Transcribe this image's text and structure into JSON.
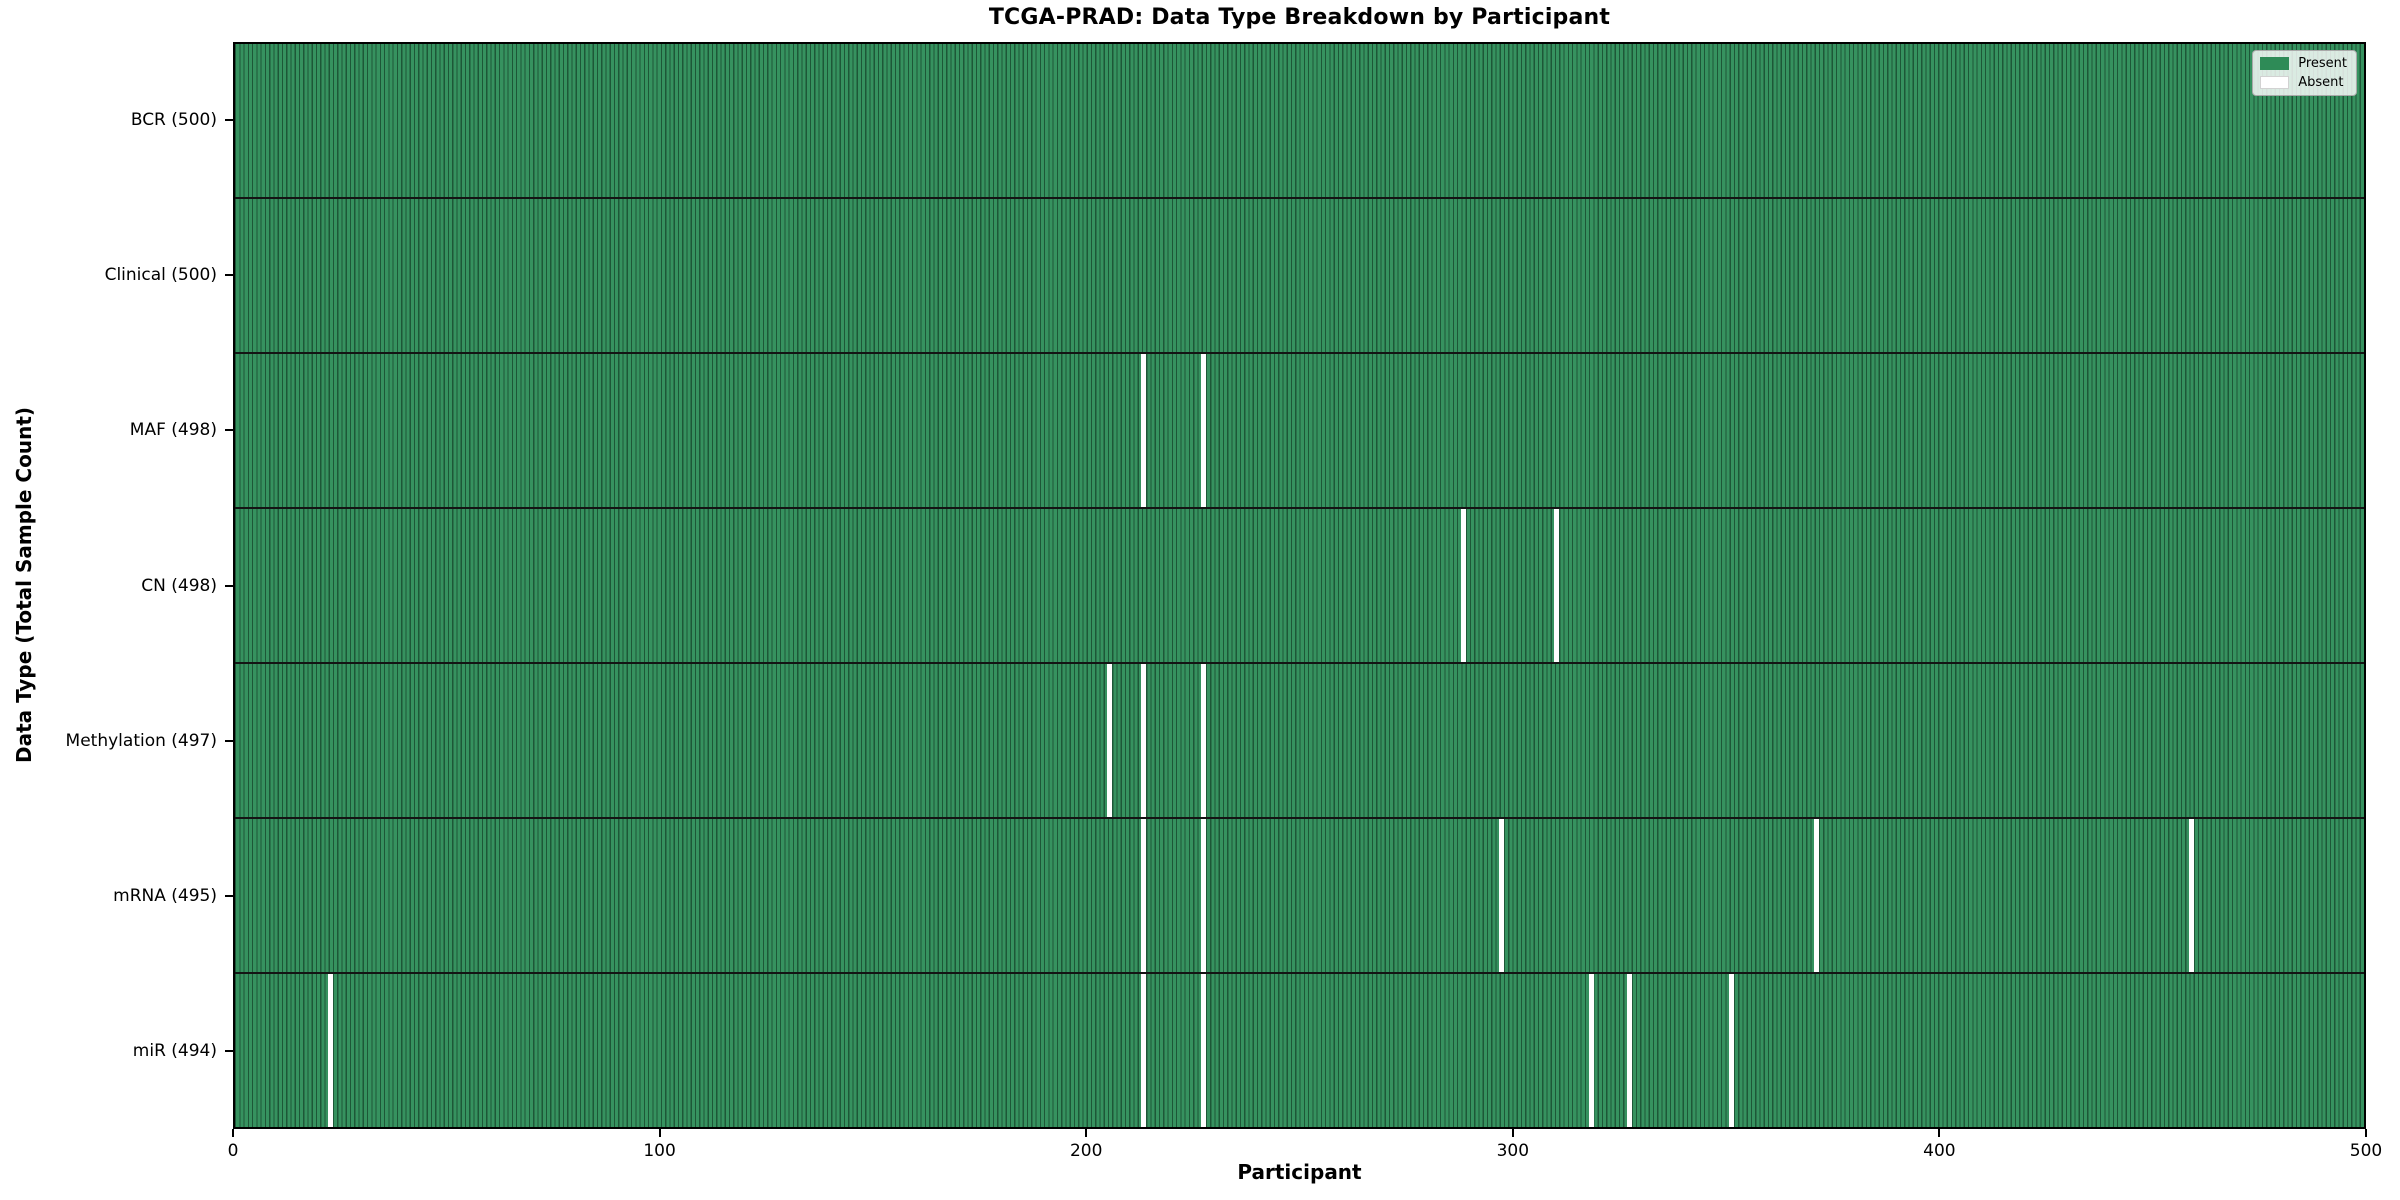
{
  "chart_data": {
    "type": "heatmap",
    "title": "TCGA-PRAD: Data Type Breakdown by Participant",
    "xlabel": "Participant",
    "ylabel": "Data Type (Total Sample Count)",
    "x_range": [
      0,
      500
    ],
    "x_ticks": [
      0,
      100,
      200,
      300,
      400,
      500
    ],
    "n_participants": 500,
    "grid": "row-separators-only",
    "legend_position": "upper-right",
    "legend": [
      {
        "label": "Present",
        "color": "#2e8b57"
      },
      {
        "label": "Absent",
        "color": "#ffffff"
      }
    ],
    "colors": {
      "present_fill": "#36925f",
      "bar_edge": "#1d5737",
      "absent": "#ffffff",
      "separator": "#141414"
    },
    "rows": [
      {
        "label": "BCR (500)",
        "total": 500,
        "absent_participants": []
      },
      {
        "label": "Clinical (500)",
        "total": 500,
        "absent_participants": []
      },
      {
        "label": "MAF (498)",
        "total": 498,
        "absent_participants": [
          213,
          227
        ]
      },
      {
        "label": "CN (498)",
        "total": 498,
        "absent_participants": [
          288,
          310
        ]
      },
      {
        "label": "Methylation (497)",
        "total": 497,
        "absent_participants": [
          205,
          213,
          227
        ]
      },
      {
        "label": "mRNA (495)",
        "total": 495,
        "absent_participants": [
          213,
          227,
          297,
          371,
          459
        ]
      },
      {
        "label": "miR (494)",
        "total": 494,
        "absent_participants": [
          22,
          213,
          227,
          318,
          327,
          351
        ]
      }
    ]
  }
}
